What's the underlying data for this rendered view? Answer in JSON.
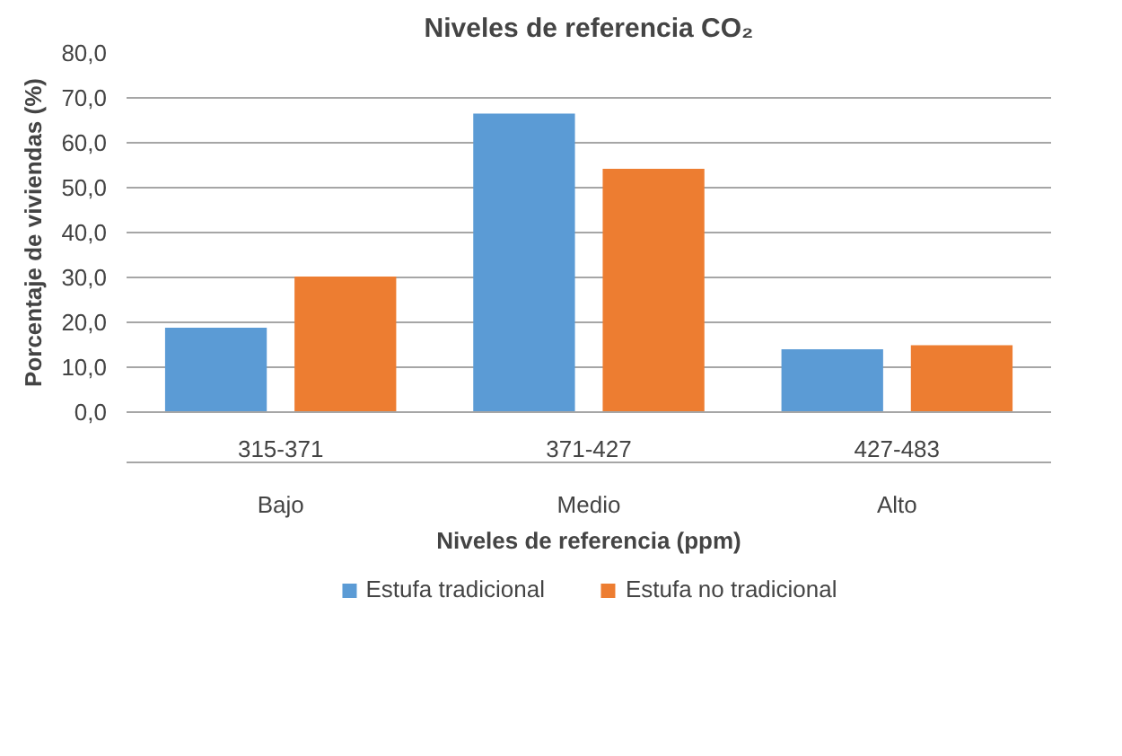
{
  "chart_data": {
    "type": "bar",
    "title": "Niveles de referencia CO₂",
    "xlabel": "Niveles de referencia (ppm)",
    "ylabel": "Porcentaje de viviendas (%)",
    "categories": [
      "315-371",
      "371-427",
      "427-483"
    ],
    "series": [
      {
        "name": "Estufa tradicional",
        "color": "#5b9bd5",
        "values": [
          18.8,
          66.5,
          14.0
        ]
      },
      {
        "name": "Estufa no tradicional",
        "color": "#ed7d31",
        "values": [
          30.2,
          54.2,
          14.9
        ]
      }
    ],
    "annotations": [
      "Bajo",
      "Medio",
      "Alto"
    ],
    "ylim": [
      0,
      80
    ],
    "yticks": [
      {
        "value": 0,
        "label": "0,0"
      },
      {
        "value": 10,
        "label": "10,0"
      },
      {
        "value": 20,
        "label": "20,0"
      },
      {
        "value": 30,
        "label": "30,0"
      },
      {
        "value": 40,
        "label": "40,0"
      },
      {
        "value": 50,
        "label": "50,0"
      },
      {
        "value": 60,
        "label": "60,0"
      },
      {
        "value": 70,
        "label": "70,0"
      },
      {
        "value": 80,
        "label": "80,0"
      }
    ],
    "grid": "y",
    "legend": "bottom"
  }
}
